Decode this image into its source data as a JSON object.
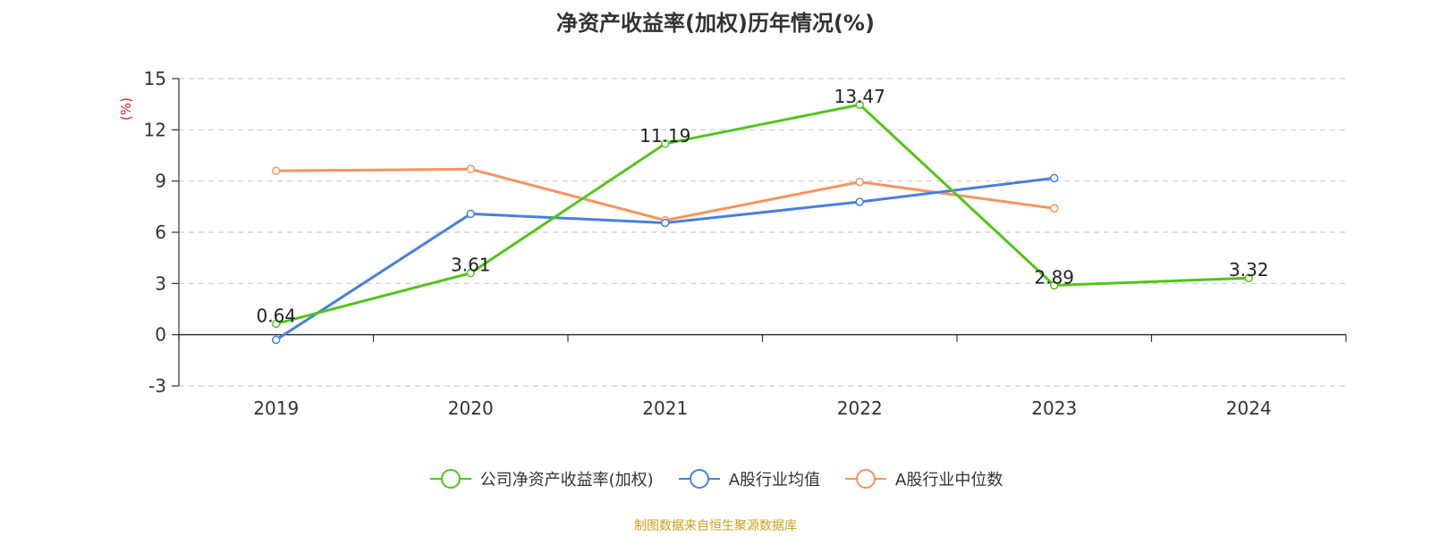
{
  "chart_data": {
    "type": "line",
    "title": "净资产收益率(加权)历年情况(%)",
    "ylabel": "(%)",
    "ylim": [
      -3,
      15
    ],
    "yticks": [
      -3,
      0,
      3,
      6,
      9,
      12,
      15
    ],
    "categories": [
      "2019",
      "2020",
      "2021",
      "2022",
      "2023",
      "2024"
    ],
    "grid": true,
    "legend_position": "bottom",
    "series": [
      {
        "name": "公司净资产收益率(加权)",
        "color": "#52c41a",
        "values": [
          0.64,
          3.61,
          11.19,
          13.47,
          2.89,
          3.32
        ],
        "labels": [
          "0.64",
          "3.61",
          "11.19",
          "13.47",
          "2.89",
          "3.32"
        ]
      },
      {
        "name": "A股行业均值",
        "color": "#4a7fdb",
        "values": [
          -0.3,
          7.08,
          6.55,
          7.78,
          9.17,
          null
        ]
      },
      {
        "name": "A股行业中位数",
        "color": "#f7945e",
        "values": [
          9.6,
          9.7,
          6.7,
          8.95,
          7.4,
          null
        ]
      }
    ]
  },
  "source_note": "制图数据来自恒生聚源数据库",
  "colors": {
    "axis": "#333333",
    "grid": "#cccccc",
    "ylabel": "#e02020",
    "source": "#c8a020"
  }
}
